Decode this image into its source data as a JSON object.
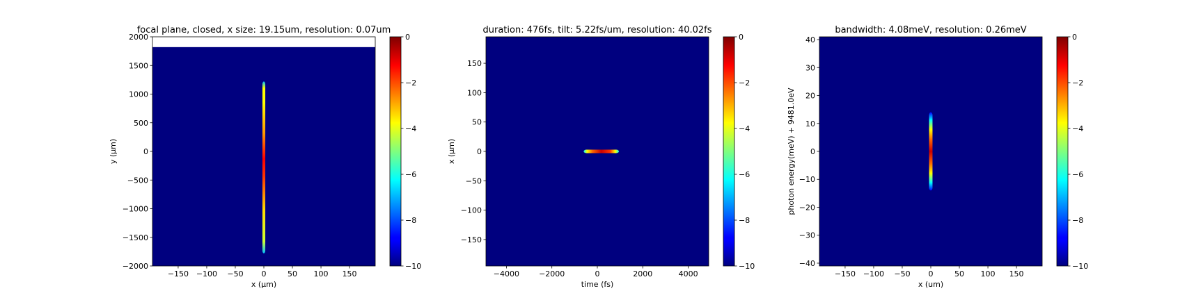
{
  "chart_data": [
    {
      "type": "heatmap",
      "title": "focal plane, closed, x size: 19.15um, resolution: 0.07um",
      "xlabel": "x (μm)",
      "ylabel": "y (μm)",
      "xlim": [
        -195,
        195
      ],
      "ylim": [
        -2000,
        2000
      ],
      "xticks": [
        -150,
        -100,
        -50,
        0,
        50,
        100,
        150
      ],
      "yticks": [
        -2000,
        -1500,
        -1000,
        -500,
        0,
        500,
        1000,
        1500,
        2000
      ],
      "data_extent_y": [
        -2000,
        1820
      ],
      "feature": {
        "shape": "vertical",
        "x_center": 0,
        "x_halfwidth": 2.5,
        "y_range": [
          -1780,
          1220
        ],
        "hot_range": [
          -500,
          700
        ]
      },
      "colorbar": {
        "range": [
          -10,
          0
        ],
        "ticks": [
          0,
          -2,
          -4,
          -6,
          -8,
          -10
        ],
        "colormap": "jet"
      }
    },
    {
      "type": "heatmap",
      "title": "duration: 476fs, tilt: 5.22fs/um, resolution: 40.02fs",
      "xlabel": "time (fs)",
      "ylabel": "x (μm)",
      "xlim": [
        -4900,
        4900
      ],
      "ylim": [
        -195,
        195
      ],
      "xticks": [
        -4000,
        -2000,
        0,
        2000,
        4000
      ],
      "yticks": [
        -150,
        -100,
        -50,
        0,
        50,
        100,
        150
      ],
      "feature": {
        "shape": "horizontal",
        "y_center": 0,
        "y_halfwidth": 3,
        "x_range": [
          -600,
          950
        ],
        "hot_range": [
          -300,
          650
        ]
      },
      "colorbar": {
        "range": [
          -10,
          0
        ],
        "ticks": [
          0,
          -2,
          -4,
          -6,
          -8,
          -10
        ],
        "colormap": "jet"
      }
    },
    {
      "type": "heatmap",
      "title": "bandwidth: 4.08meV, resolution: 0.26meV",
      "xlabel": "x (um)",
      "ylabel": "photon energy(meV) + 9481.0eV",
      "xlim": [
        -195,
        195
      ],
      "ylim": [
        -41,
        41
      ],
      "xticks": [
        -150,
        -100,
        -50,
        0,
        50,
        100,
        150
      ],
      "yticks": [
        -40,
        -30,
        -20,
        -10,
        0,
        10,
        20,
        30,
        40
      ],
      "feature": {
        "shape": "vertical",
        "x_center": 0,
        "x_halfwidth": 3,
        "y_range": [
          -14,
          14
        ],
        "hot_range": [
          -7,
          8
        ]
      },
      "colorbar": {
        "range": [
          -10,
          0
        ],
        "ticks": [
          0,
          -2,
          -4,
          -6,
          -8,
          -10
        ],
        "colormap": "jet"
      }
    }
  ],
  "colors": {
    "background": "#00007f",
    "jet_stops": [
      "#00007f",
      "#0000ff",
      "#00ffff",
      "#ffff00",
      "#ff0000",
      "#7f0000"
    ]
  }
}
